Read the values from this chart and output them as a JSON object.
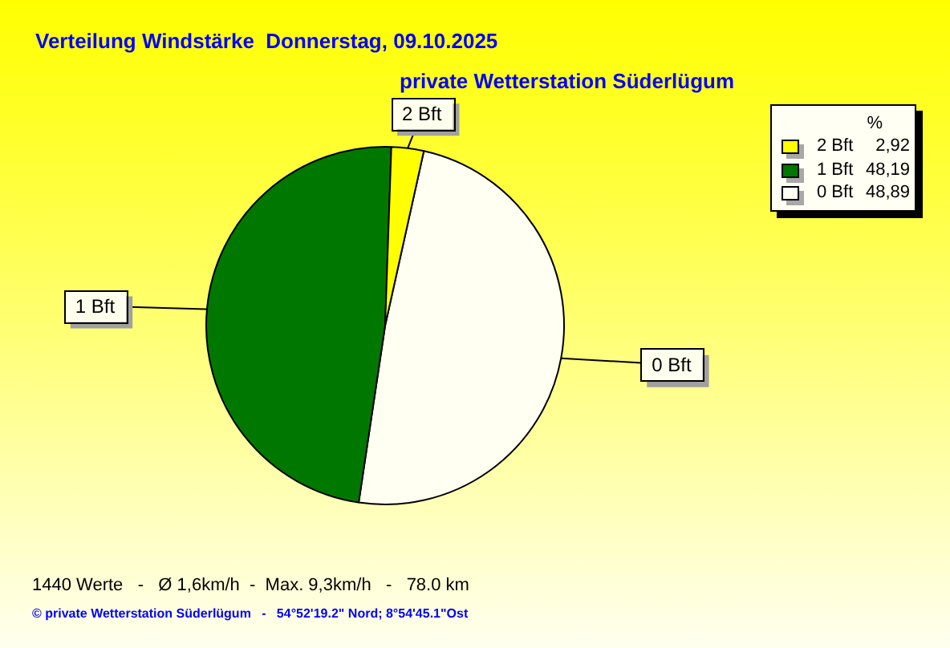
{
  "chart_data": {
    "type": "pie",
    "title": "Verteilung Windstärke  Donnerstag, 09.10.2025",
    "subtitle": "private Wetterstation Süderlügum",
    "categories": [
      "2 Bft",
      "1 Bft",
      "0 Bft"
    ],
    "values": [
      2.92,
      48.19,
      48.89
    ],
    "colors": [
      "#ffff00",
      "#007800",
      "#fffff2"
    ],
    "value_labels": [
      "2,92",
      "48,19",
      "48,89"
    ],
    "legend": "top right",
    "legend_title": "%",
    "annotations": [
      "1440 Werte   -   Ø 1,6km/h  -  Max. 9,3km/h   -   78.0 km",
      "© private Wetterstation Süderlügum   -   54°52'19.2\" Nord; 8°54'45.1\"Ost"
    ]
  }
}
